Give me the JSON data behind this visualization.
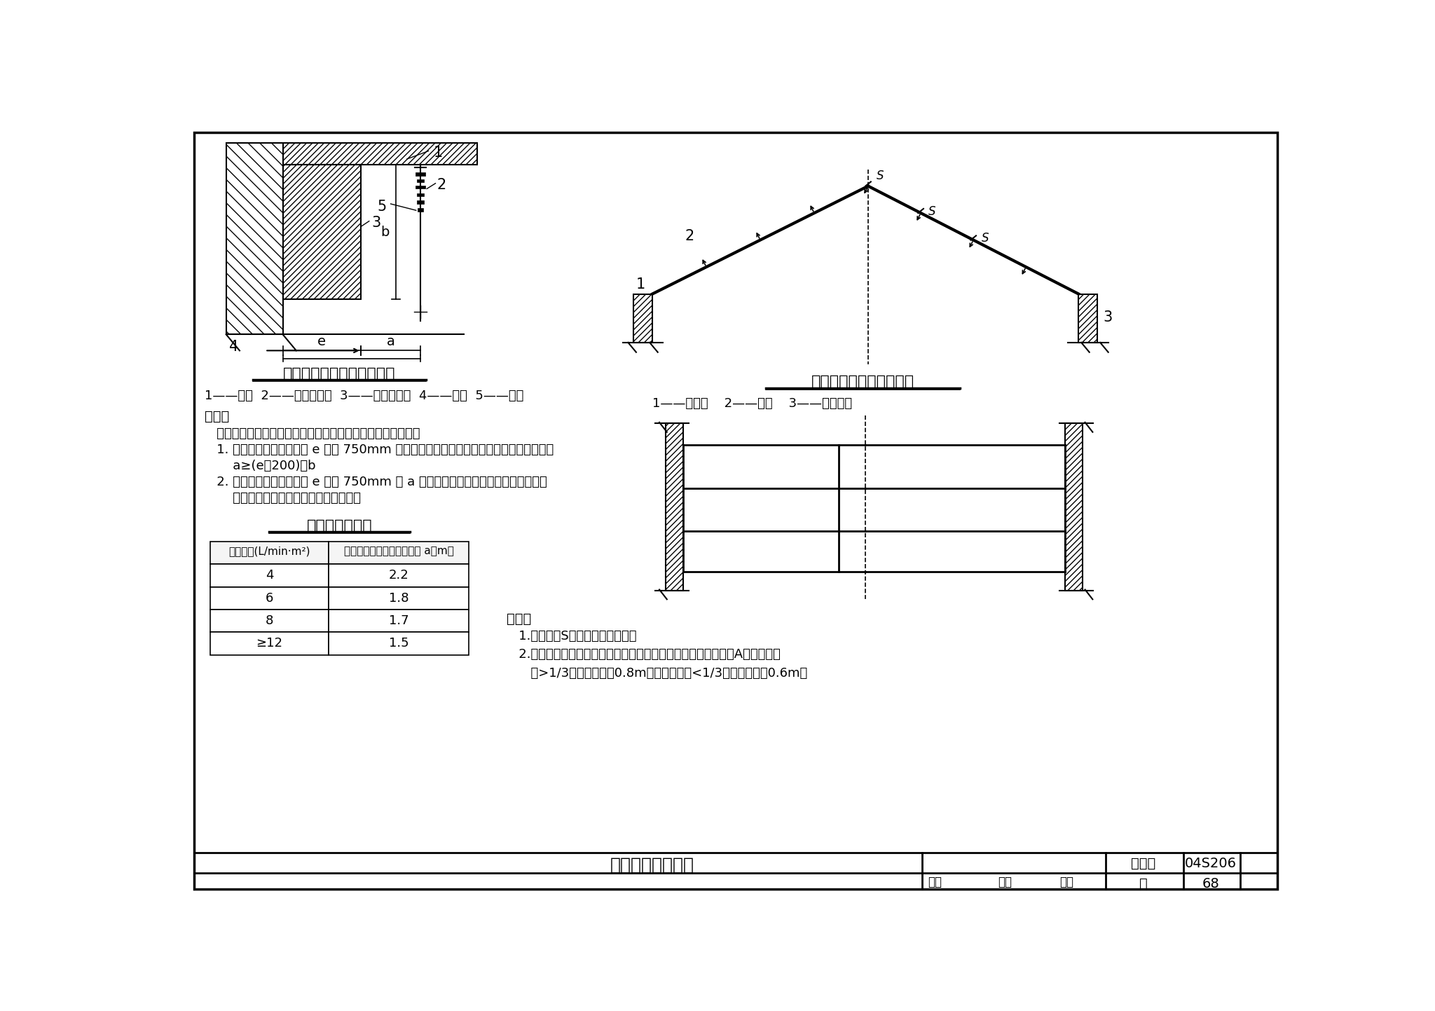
{
  "bg_color": "#ffffff",
  "title": "喷头的布置示意图",
  "atlas_no": "04S206",
  "page": "68",
  "diagram1_title": "喷头与靠墙障碍物的关系图",
  "diagram1_legend": "1——顶板  2——直立型喷头  3——靠墙障碍物  4——墙面  5——管道",
  "diagram2_title": "斜屋面下喷头布置示意图",
  "diagram2_legend": "1——斜屋面    2——喷头    3——配水干管",
  "note1_title": "说明：",
  "note1_lines": [
    "   直立型、下垂型喷头与靠墙障碍物的距离，应符合下列规定：",
    "   1. 对于障碍物横截面边长 e 小于 750mm 时，喷头与障碍物的距离，应按下列公式确定：",
    "       a≥(e－200)＋b",
    "   2. 对于障碍物横截面边长 e 大于 750mm 或 a 的计算值大于下表中喷头与端墙距离的",
    "       规定时，应在靠墙障碍物下增设喷头。"
  ],
  "table_title": "喷头与端墙距离",
  "table_headers": [
    "喷水强度(L/min·m²)",
    "喷头与端墙的最大水平距离 a（m）"
  ],
  "table_rows": [
    [
      "4",
      "2.2"
    ],
    [
      "6",
      "1.8"
    ],
    [
      "8",
      "1.7"
    ],
    [
      "≥12",
      "1.5"
    ]
  ],
  "note2_title": "说明：",
  "note2_lines": [
    "   1.喷头间距S，按斜面距离确定。",
    "   2.尖屋顶的屋脊处应设一排喷头。喷头溅水盘至屋脊的垂直距离A，当屋顶坡",
    "      度>1/3时，不应大于0.8m；当屋顶坡度<1/3时，不应大于0.6m。"
  ]
}
